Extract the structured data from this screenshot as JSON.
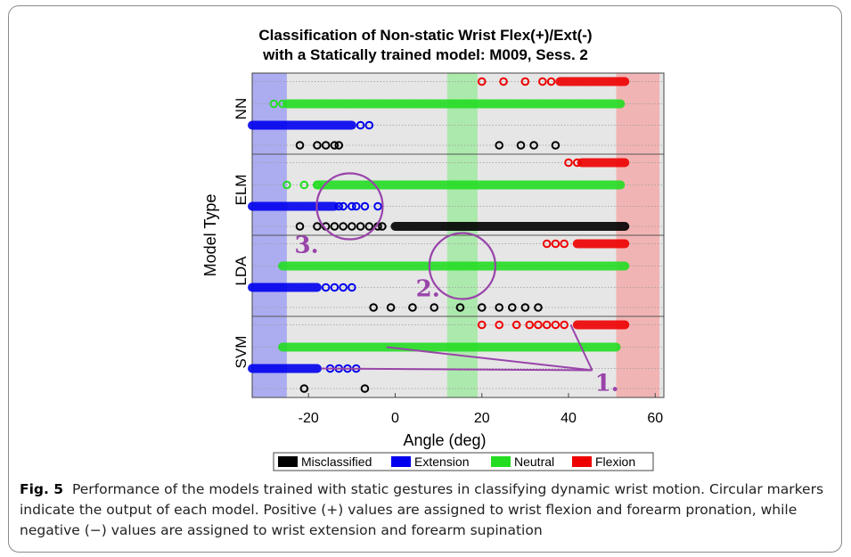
{
  "chart_data": {
    "type": "scatter",
    "title_lines": [
      "Classification of Non-static Wrist Flex(+)/Ext(-)",
      "with a Statically trained model: M009, Sess. 2"
    ],
    "xlabel": "Angle (deg)",
    "ylabel": "Model Type",
    "xlim": [
      -33,
      62
    ],
    "xticks": [
      -20,
      0,
      20,
      40,
      60
    ],
    "grid": true,
    "legend_position": "bottom",
    "legend": [
      {
        "label": "Misclassified",
        "color": "#000000"
      },
      {
        "label": "Extension",
        "color": "#0000ee"
      },
      {
        "label": "Neutral",
        "color": "#22dd22"
      },
      {
        "label": "Flexion",
        "color": "#ee0000"
      }
    ],
    "models": [
      "NN",
      "ELM",
      "LDA",
      "SVM"
    ],
    "rows": [
      "Flexion",
      "Neutral",
      "Extension",
      "Misclassified"
    ],
    "shaded_regions": [
      {
        "from": -33,
        "to": -25,
        "color": "#6666ff"
      },
      {
        "from": 12,
        "to": 19,
        "color": "#66ee66"
      },
      {
        "from": 51,
        "to": 61,
        "color": "#ff7777"
      }
    ],
    "series": [
      {
        "model": "NN",
        "row": "Flexion",
        "range": [
          38,
          53
        ],
        "points": [
          20,
          25,
          30,
          34,
          36
        ]
      },
      {
        "model": "NN",
        "row": "Neutral",
        "range": [
          -25,
          52
        ],
        "points": [
          -28,
          -26
        ]
      },
      {
        "model": "NN",
        "row": "Extension",
        "range": [
          -33,
          -10
        ],
        "points": [
          -8,
          -6
        ]
      },
      {
        "model": "NN",
        "row": "Misclassified",
        "range": null,
        "points": [
          -22,
          -18,
          -16,
          -14,
          -13,
          24,
          29,
          32,
          37
        ]
      },
      {
        "model": "ELM",
        "row": "Flexion",
        "range": [
          43,
          53
        ],
        "points": [
          40,
          42
        ]
      },
      {
        "model": "ELM",
        "row": "Neutral",
        "range": [
          -18,
          52
        ],
        "points": [
          -25,
          -21,
          -18
        ]
      },
      {
        "model": "ELM",
        "row": "Extension",
        "range": [
          -33,
          -14
        ],
        "points": [
          -13,
          -12,
          -10,
          -9,
          -7,
          -4
        ]
      },
      {
        "model": "ELM",
        "row": "Misclassified",
        "range": [
          0,
          53
        ],
        "points": [
          -22,
          -18,
          -16,
          -14,
          -12,
          -10,
          -8,
          -6,
          -4,
          -3
        ]
      },
      {
        "model": "LDA",
        "row": "Flexion",
        "range": [
          42,
          53
        ],
        "points": [
          35,
          37,
          39
        ]
      },
      {
        "model": "LDA",
        "row": "Neutral",
        "range": [
          -26,
          53
        ],
        "points": []
      },
      {
        "model": "LDA",
        "row": "Extension",
        "range": [
          -33,
          -18
        ],
        "points": [
          -16,
          -14,
          -12,
          -10
        ]
      },
      {
        "model": "LDA",
        "row": "Misclassified",
        "range": null,
        "points": [
          -5,
          -1,
          4,
          9,
          15,
          20,
          24,
          27,
          30,
          33
        ]
      },
      {
        "model": "SVM",
        "row": "Flexion",
        "range": [
          42,
          53
        ],
        "points": [
          20,
          24,
          28,
          31,
          33,
          35,
          37,
          39
        ]
      },
      {
        "model": "SVM",
        "row": "Neutral",
        "range": [
          -26,
          51
        ],
        "points": []
      },
      {
        "model": "SVM",
        "row": "Extension",
        "range": [
          -33,
          -18
        ],
        "points": [
          -15,
          -13,
          -11,
          -9
        ]
      },
      {
        "model": "SVM",
        "row": "Misclassified",
        "range": null,
        "points": [
          -21,
          -7
        ]
      }
    ],
    "annotations": [
      {
        "text": "1.",
        "color": "#9944aa",
        "x": 43,
        "y_model": "SVM",
        "y_row": "Extension",
        "line_targets": [
          {
            "x": 40.5,
            "model": "SVM",
            "row": "Flexion"
          },
          {
            "x": -2,
            "model": "SVM",
            "row": "Neutral"
          },
          {
            "x": -17,
            "model": "SVM",
            "row": "Extension"
          }
        ]
      },
      {
        "text": "2.",
        "color": "#9944aa",
        "x": 6,
        "y_model": "LDA",
        "y_row": "Extension",
        "circle_center": {
          "x": 15.5,
          "model": "LDA",
          "row": "Neutral"
        }
      },
      {
        "text": "3.",
        "color": "#9944aa",
        "x": -22,
        "y_model": "LDA",
        "y_row": "Flexion",
        "circle_center": {
          "x": -10.5,
          "model": "ELM",
          "row": "Extension"
        }
      }
    ]
  },
  "caption": {
    "label": "Fig. 5",
    "text": "Performance of the models trained with static gestures in classifying dynamic wrist motion. Circular markers indicate the output of each model. Positive (+) values are assigned to wrist flexion and forearm pronation, while negative (−) values are assigned to wrist extension and forearm supination"
  }
}
